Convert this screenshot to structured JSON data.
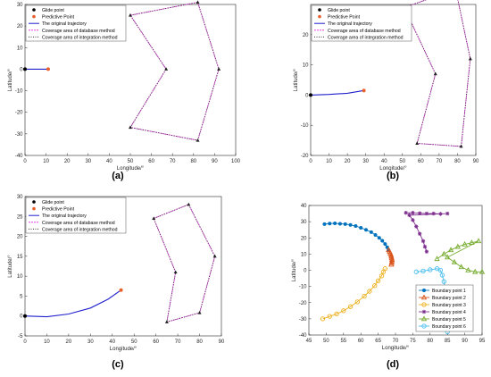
{
  "chart_data": [
    {
      "type": "line",
      "panel_label": "(a)",
      "xlabel": "Longitude/°",
      "ylabel": "Latitude/°",
      "xlim": [
        0,
        100
      ],
      "ylim": [
        -40,
        30
      ],
      "xticks": [
        0,
        10,
        20,
        30,
        40,
        50,
        60,
        70,
        80,
        90,
        100
      ],
      "yticks": [
        -40,
        -30,
        -20,
        -10,
        0,
        10,
        20,
        30
      ],
      "legend_position": "top-left",
      "legend": [
        "Glide point",
        "Predictive Point",
        "The original trajectory",
        "Coverage area of database method",
        "Coverage area of integration method"
      ],
      "glide_point": [
        0,
        0
      ],
      "predictive_point": [
        11,
        0
      ],
      "trajectory": [
        [
          0,
          0
        ],
        [
          11,
          0
        ]
      ],
      "coverage_database": [
        [
          50,
          25
        ],
        [
          82,
          31
        ],
        [
          92,
          0
        ],
        [
          82,
          -33
        ],
        [
          50,
          -27
        ],
        [
          67,
          0
        ],
        [
          50,
          25
        ]
      ],
      "coverage_integration": [
        [
          50,
          25
        ],
        [
          82,
          31
        ],
        [
          92,
          0
        ],
        [
          82,
          -33
        ],
        [
          50,
          -27
        ],
        [
          67,
          0
        ],
        [
          50,
          25
        ]
      ]
    },
    {
      "type": "line",
      "panel_label": "(b)",
      "xlabel": "Longitude/°",
      "ylabel": "Latitude/°",
      "xlim": [
        0,
        90
      ],
      "ylim": [
        -20,
        30
      ],
      "xticks": [
        0,
        10,
        20,
        30,
        40,
        50,
        60,
        70,
        80,
        90
      ],
      "yticks": [
        -20,
        -10,
        0,
        10,
        20
      ],
      "legend_position": "top-left",
      "legend": [
        "Glide point",
        "Predictive Point",
        "The original trajectory",
        "Coverage area of database method",
        "Coverage area of integration method"
      ],
      "glide_point": [
        0,
        0
      ],
      "predictive_point": [
        29,
        1.5
      ],
      "trajectory": [
        [
          0,
          0
        ],
        [
          10,
          0.2
        ],
        [
          20,
          0.6
        ],
        [
          29,
          1.5
        ]
      ],
      "coverage_database": [
        [
          51,
          29
        ],
        [
          79,
          35
        ],
        [
          87,
          12
        ],
        [
          82,
          -17
        ],
        [
          58,
          -16
        ],
        [
          68,
          7
        ],
        [
          51,
          29
        ]
      ],
      "coverage_integration": [
        [
          51,
          29
        ],
        [
          79,
          35
        ],
        [
          87,
          12
        ],
        [
          82,
          -17
        ],
        [
          58,
          -16
        ],
        [
          68,
          7
        ],
        [
          51,
          29
        ]
      ]
    },
    {
      "type": "line",
      "panel_label": "(c)",
      "xlabel": "Longitude/°",
      "ylabel": "Latitude/°",
      "xlim": [
        0,
        90
      ],
      "ylim": [
        -5,
        30
      ],
      "xticks": [
        0,
        10,
        20,
        30,
        40,
        50,
        60,
        70,
        80,
        90
      ],
      "yticks": [
        -5,
        0,
        5,
        10,
        15,
        20,
        25,
        30
      ],
      "legend_position": "top-left",
      "legend": [
        "Glide point",
        "Predictive Point",
        "The original trajectory",
        "Coverage area of database method",
        "Coverage area of integration method"
      ],
      "glide_point": [
        0,
        0
      ],
      "predictive_point": [
        44,
        6.5
      ],
      "trajectory": [
        [
          0,
          0
        ],
        [
          10,
          -0.2
        ],
        [
          20,
          0.5
        ],
        [
          30,
          2
        ],
        [
          38,
          4.2
        ],
        [
          44,
          6.5
        ]
      ],
      "coverage_database": [
        [
          59,
          24.5
        ],
        [
          75,
          28
        ],
        [
          87,
          15
        ],
        [
          80,
          0.8
        ],
        [
          65,
          -1.5
        ],
        [
          69,
          11
        ],
        [
          59,
          24.5
        ]
      ],
      "coverage_integration": [
        [
          59,
          24.5
        ],
        [
          75,
          28
        ],
        [
          87,
          15
        ],
        [
          80,
          0.8
        ],
        [
          65,
          -1.5
        ],
        [
          69,
          11
        ],
        [
          59,
          24.5
        ]
      ]
    },
    {
      "type": "line",
      "panel_label": "(d)",
      "xlabel": "Longitude/°",
      "ylabel": "Latitude/°",
      "xlim": [
        45,
        95
      ],
      "ylim": [
        -40,
        40
      ],
      "xticks": [
        45,
        50,
        55,
        60,
        65,
        70,
        75,
        80,
        85,
        90,
        95
      ],
      "yticks": [
        -40,
        -30,
        -20,
        -10,
        0,
        10,
        20,
        30,
        40
      ],
      "legend_position": "bottom-right",
      "series": [
        {
          "name": "Boundary point 1",
          "color": "#0072BD",
          "marker": "circle-filled",
          "points": [
            [
              49.5,
              28.5
            ],
            [
              51,
              28.8
            ],
            [
              52.5,
              29
            ],
            [
              54,
              28.7
            ],
            [
              55.5,
              28.5
            ],
            [
              57,
              28
            ],
            [
              58.5,
              27.3
            ],
            [
              60,
              26.2
            ],
            [
              61.5,
              25
            ],
            [
              63,
              23.5
            ],
            [
              64.2,
              21.8
            ],
            [
              65.3,
              20
            ],
            [
              66.2,
              18.2
            ],
            [
              67,
              16.2
            ],
            [
              67.6,
              14.2
            ],
            [
              68,
              12.5
            ]
          ]
        },
        {
          "name": "Boundary point 2",
          "color": "#D95319",
          "marker": "triangle-open",
          "points": [
            [
              68,
              12.5
            ],
            [
              68.3,
              11.5
            ],
            [
              68.5,
              10.5
            ],
            [
              68.7,
              9.5
            ],
            [
              68.8,
              8.5
            ],
            [
              68.9,
              7.5
            ],
            [
              69,
              6.5
            ],
            [
              69,
              5.5
            ],
            [
              68.9,
              4.5
            ],
            [
              68.8,
              3.5
            ]
          ]
        },
        {
          "name": "Boundary point 3",
          "color": "#EDB120",
          "marker": "circle-open",
          "points": [
            [
              49,
              -30
            ],
            [
              51,
              -28.5
            ],
            [
              53,
              -27
            ],
            [
              55,
              -25
            ],
            [
              57,
              -22.5
            ],
            [
              59,
              -19.5
            ],
            [
              61,
              -16
            ],
            [
              62.5,
              -13
            ],
            [
              64,
              -9.5
            ],
            [
              65,
              -6.5
            ],
            [
              66,
              -3.5
            ],
            [
              66.5,
              -1
            ],
            [
              67,
              1
            ]
          ]
        },
        {
          "name": "Boundary point 4",
          "color": "#7E2F8E",
          "marker": "star",
          "points": [
            [
              73,
              35.5
            ],
            [
              75,
              35.5
            ],
            [
              77,
              35.2
            ],
            [
              79,
              35
            ],
            [
              81,
              35
            ],
            [
              83,
              34.8
            ],
            [
              85,
              35
            ],
            [
              74,
              34
            ],
            [
              75,
              31
            ],
            [
              76,
              27
            ],
            [
              77,
              22.5
            ],
            [
              78,
              18
            ],
            [
              78.5,
              14.5
            ],
            [
              79,
              11.5
            ]
          ]
        },
        {
          "name": "Boundary point 5",
          "color": "#77AC30",
          "marker": "triangle-open",
          "points": [
            [
              82,
              7
            ],
            [
              84,
              10
            ],
            [
              86,
              12.5
            ],
            [
              88,
              14.5
            ],
            [
              90,
              16
            ],
            [
              92,
              17
            ],
            [
              94,
              18
            ],
            [
              85,
              8
            ],
            [
              87,
              5
            ],
            [
              89,
              2
            ],
            [
              91,
              0
            ],
            [
              93,
              -1
            ],
            [
              95,
              -1
            ]
          ]
        },
        {
          "name": "Boundary point 6",
          "color": "#4DBEEE",
          "marker": "circle-open",
          "points": [
            [
              76,
              -1
            ],
            [
              78,
              -0.5
            ],
            [
              80,
              0.3
            ],
            [
              82,
              1
            ],
            [
              83,
              0
            ],
            [
              83.5,
              -3
            ],
            [
              84,
              -7
            ],
            [
              84.3,
              -11
            ],
            [
              84.5,
              -15
            ],
            [
              84.7,
              -19
            ],
            [
              84.8,
              -23
            ],
            [
              85,
              -27
            ],
            [
              85,
              -31
            ],
            [
              85,
              -35
            ],
            [
              85,
              -38
            ]
          ]
        }
      ]
    }
  ],
  "common": {
    "glide_color": "#000000",
    "predict_color": "#E8602C",
    "trajectory_color": "#1F1FCC",
    "database_color": "#E040E0",
    "integration_color": "#303030"
  }
}
